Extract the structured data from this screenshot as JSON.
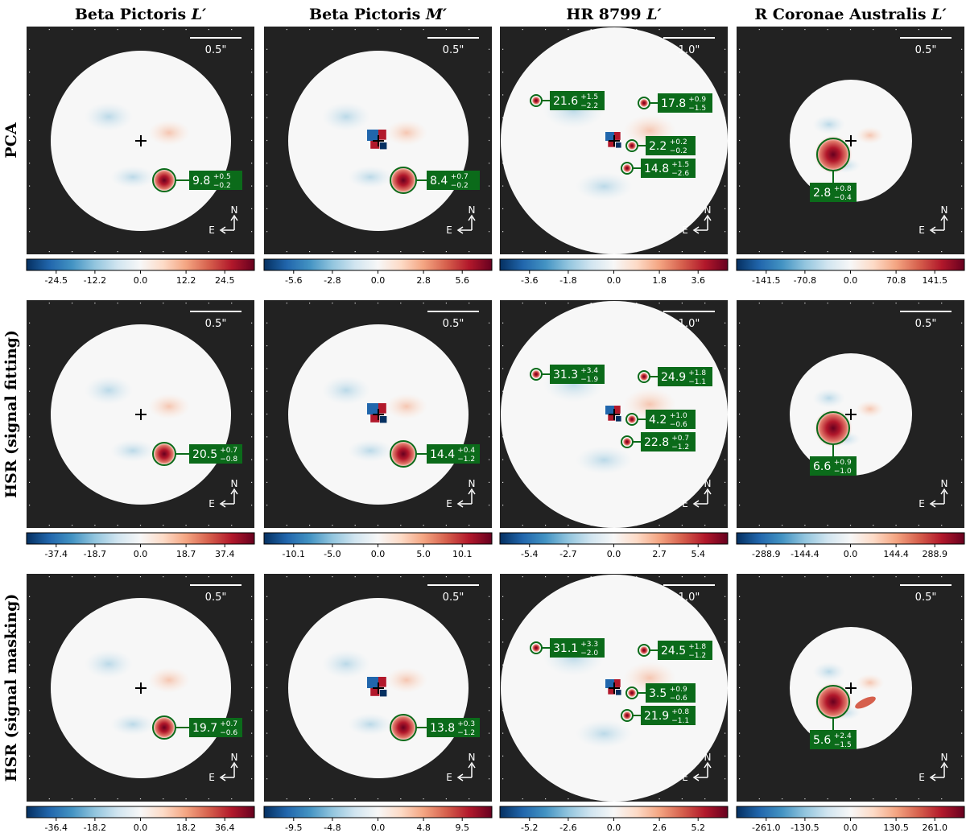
{
  "columns": [
    {
      "title": "Beta Pictoris",
      "band": "L′",
      "scalebar": "0.5\""
    },
    {
      "title": "Beta Pictoris",
      "band": "M′",
      "scalebar": "0.5\""
    },
    {
      "title": "HR 8799",
      "band": "L′",
      "scalebar": "1.0\""
    },
    {
      "title": "R Coronae Australis",
      "band": "L′",
      "scalebar": "0.5\""
    }
  ],
  "rows": [
    {
      "label": "PCA"
    },
    {
      "label": "HSR (signal fitting)"
    },
    {
      "label": "HSR (signal masking)"
    }
  ],
  "compass": {
    "north": "N",
    "east": "E"
  },
  "colors": {
    "background": "#222222",
    "positive": "#67001f",
    "negative": "#053061",
    "zero": "#f7f7f7",
    "annotation": "#0b6b1a",
    "annotation_text": "#ffffff"
  },
  "colormap": "RdBu_r",
  "panels": [
    [
      {
        "colorbar_ticks": [
          "-24.5",
          "-12.2",
          "0.0",
          "12.2",
          "24.5"
        ],
        "annotations": [
          {
            "value": "9.8",
            "upper": "+0.5",
            "lower": "−0.2"
          }
        ]
      },
      {
        "colorbar_ticks": [
          "-5.6",
          "-2.8",
          "0.0",
          "2.8",
          "5.6"
        ],
        "annotations": [
          {
            "value": "8.4",
            "upper": "+0.7",
            "lower": "−0.2"
          }
        ]
      },
      {
        "colorbar_ticks": [
          "-3.6",
          "-1.8",
          "0.0",
          "1.8",
          "3.6"
        ],
        "annotations": [
          {
            "value": "21.6",
            "upper": "+1.5",
            "lower": "−2.2"
          },
          {
            "value": "17.8",
            "upper": "+0.9",
            "lower": "−1.5"
          },
          {
            "value": "2.2",
            "upper": "+0.2",
            "lower": "−0.2"
          },
          {
            "value": "14.8",
            "upper": "+1.5",
            "lower": "−2.6"
          }
        ]
      },
      {
        "colorbar_ticks": [
          "-141.5",
          "-70.8",
          "0.0",
          "70.8",
          "141.5"
        ],
        "annotations": [
          {
            "value": "2.8",
            "upper": "+0.8",
            "lower": "−0.4"
          }
        ]
      }
    ],
    [
      {
        "colorbar_ticks": [
          "-37.4",
          "-18.7",
          "0.0",
          "18.7",
          "37.4"
        ],
        "annotations": [
          {
            "value": "20.5",
            "upper": "+0.7",
            "lower": "−0.8"
          }
        ]
      },
      {
        "colorbar_ticks": [
          "-10.1",
          "-5.0",
          "0.0",
          "5.0",
          "10.1"
        ],
        "annotations": [
          {
            "value": "14.4",
            "upper": "+0.4",
            "lower": "−1.2"
          }
        ]
      },
      {
        "colorbar_ticks": [
          "-5.4",
          "-2.7",
          "0.0",
          "2.7",
          "5.4"
        ],
        "annotations": [
          {
            "value": "31.3",
            "upper": "+3.4",
            "lower": "−1.9"
          },
          {
            "value": "24.9",
            "upper": "+1.8",
            "lower": "−1.1"
          },
          {
            "value": "4.2",
            "upper": "+1.0",
            "lower": "−0.6"
          },
          {
            "value": "22.8",
            "upper": "+0.7",
            "lower": "−1.2"
          }
        ]
      },
      {
        "colorbar_ticks": [
          "-288.9",
          "-144.4",
          "0.0",
          "144.4",
          "288.9"
        ],
        "annotations": [
          {
            "value": "6.6",
            "upper": "+0.9",
            "lower": "−1.0"
          }
        ]
      }
    ],
    [
      {
        "colorbar_ticks": [
          "-36.4",
          "-18.2",
          "0.0",
          "18.2",
          "36.4"
        ],
        "annotations": [
          {
            "value": "19.7",
            "upper": "+0.7",
            "lower": "−0.6"
          }
        ]
      },
      {
        "colorbar_ticks": [
          "-9.5",
          "-4.8",
          "0.0",
          "4.8",
          "9.5"
        ],
        "annotations": [
          {
            "value": "13.8",
            "upper": "+0.3",
            "lower": "−1.2"
          }
        ]
      },
      {
        "colorbar_ticks": [
          "-5.2",
          "-2.6",
          "0.0",
          "2.6",
          "5.2"
        ],
        "annotations": [
          {
            "value": "31.1",
            "upper": "+3.3",
            "lower": "−2.0"
          },
          {
            "value": "24.5",
            "upper": "+1.8",
            "lower": "−1.2"
          },
          {
            "value": "3.5",
            "upper": "+0.9",
            "lower": "−0.6"
          },
          {
            "value": "21.9",
            "upper": "+0.8",
            "lower": "−1.1"
          }
        ]
      },
      {
        "colorbar_ticks": [
          "-261.0",
          "-130.5",
          "0.0",
          "130.5",
          "261.0"
        ],
        "annotations": [
          {
            "value": "5.6",
            "upper": "+2.4",
            "lower": "−1.5"
          }
        ]
      }
    ]
  ]
}
